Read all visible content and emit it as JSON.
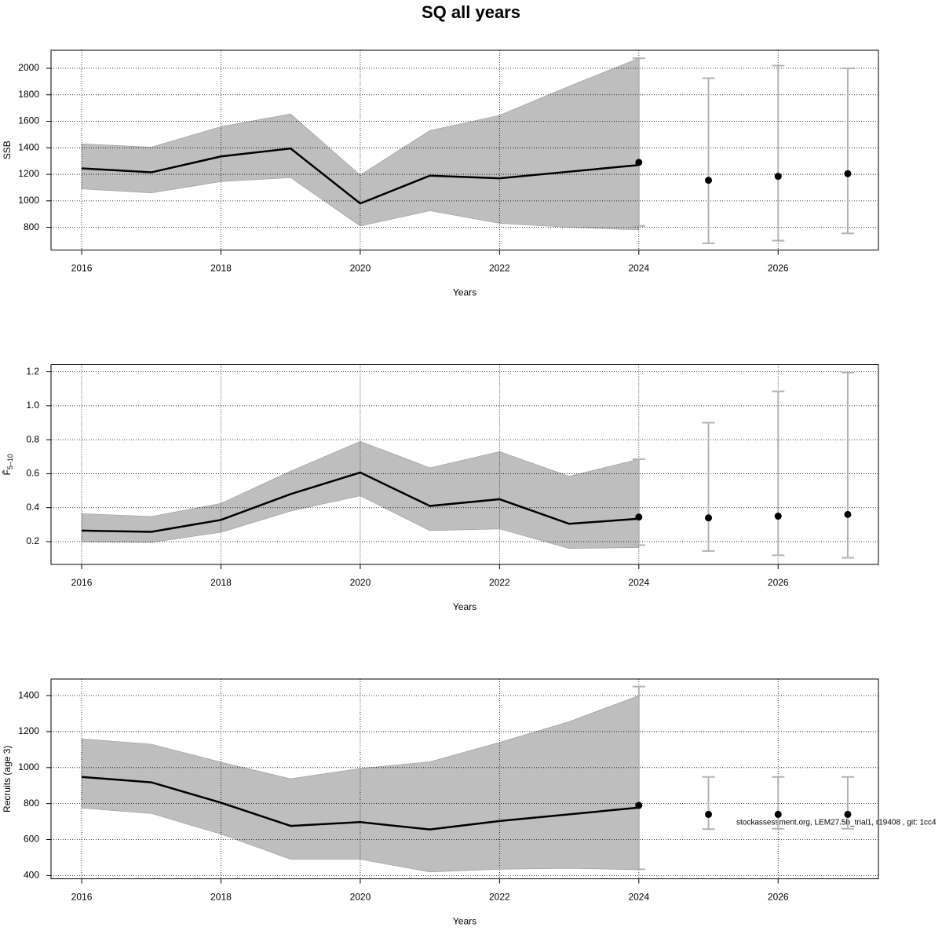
{
  "title": "SQ all years",
  "footnote": "stockassessment.org, LEM27.5b_trial1, r19408 , git: 1cc4",
  "chart_data": [
    {
      "type": "line",
      "ylabel": "SSB",
      "xlabel": "Years",
      "x": [
        2016,
        2017,
        2018,
        2019,
        2020,
        2021,
        2022,
        2023,
        2024
      ],
      "values": [
        1245,
        1215,
        1335,
        1395,
        980,
        1190,
        1170,
        1220,
        1270
      ],
      "upper": [
        1430,
        1405,
        1560,
        1655,
        1195,
        1530,
        1645,
        1865,
        2075
      ],
      "lower": [
        1090,
        1060,
        1145,
        1175,
        810,
        925,
        830,
        800,
        780
      ],
      "points": {
        "x": [
          2024,
          2025,
          2026,
          2027
        ],
        "values": [
          1290,
          1155,
          1185,
          1205
        ],
        "lower": [
          810,
          680,
          700,
          755
        ],
        "upper": [
          2075,
          1925,
          2020,
          2000
        ]
      },
      "xlim": [
        2015.56,
        2027.44
      ],
      "xticks": [
        2016,
        2018,
        2020,
        2022,
        2024,
        2026
      ],
      "ylim": [
        629,
        2136
      ],
      "yticks": [
        800,
        1000,
        1200,
        1400,
        1600,
        1800,
        2000
      ],
      "grid": true,
      "band_color": "#bebebe",
      "line_color": "#000000",
      "point_color": "#000000",
      "errorbar_color": "#b3b3b3"
    },
    {
      "type": "line",
      "ylabel": "F̄",
      "ylabel_subscript": "5–10",
      "xlabel": "Years",
      "x": [
        2016,
        2017,
        2018,
        2019,
        2020,
        2021,
        2022,
        2023,
        2024
      ],
      "values": [
        0.265,
        0.258,
        0.328,
        0.48,
        0.607,
        0.41,
        0.45,
        0.305,
        0.335
      ],
      "upper": [
        0.365,
        0.348,
        0.425,
        0.615,
        0.79,
        0.635,
        0.73,
        0.585,
        0.685
      ],
      "lower": [
        0.198,
        0.195,
        0.255,
        0.38,
        0.47,
        0.265,
        0.275,
        0.16,
        0.165
      ],
      "points": {
        "x": [
          2024,
          2025,
          2026,
          2027
        ],
        "values": [
          0.345,
          0.34,
          0.35,
          0.36
        ],
        "lower": [
          0.18,
          0.145,
          0.12,
          0.105
        ],
        "upper": [
          0.685,
          0.9,
          1.085,
          1.195
        ]
      },
      "xlim": [
        2015.56,
        2027.44
      ],
      "xticks": [
        2016,
        2018,
        2020,
        2022,
        2024,
        2026
      ],
      "ylim": [
        0.066,
        1.242
      ],
      "yticks": [
        0.2,
        0.4,
        0.6,
        0.8,
        {
          "value": 1,
          "label": "1.0"
        },
        1.2
      ],
      "grid": true,
      "band_color": "#bebebe",
      "line_color": "#000000",
      "point_color": "#000000",
      "errorbar_color": "#b3b3b3"
    },
    {
      "type": "line",
      "ylabel": "Recruits (age 3)",
      "xlabel": "Years",
      "x": [
        2016,
        2017,
        2018,
        2019,
        2020,
        2021,
        2022,
        2023,
        2024
      ],
      "values": [
        948,
        918,
        805,
        676,
        697,
        656,
        703,
        740,
        778
      ],
      "upper": [
        1160,
        1130,
        1030,
        938,
        995,
        1032,
        1140,
        1255,
        1400
      ],
      "lower": [
        775,
        745,
        630,
        490,
        490,
        420,
        435,
        440,
        432
      ],
      "points": {
        "x": [
          2024,
          2025,
          2026,
          2027
        ],
        "values": [
          790,
          740,
          740,
          740
        ],
        "lower": [
          435,
          658,
          660,
          660
        ],
        "upper": [
          1450,
          948,
          948,
          948
        ]
      },
      "xlim": [
        2015.56,
        2027.44
      ],
      "xticks": [
        2016,
        2018,
        2020,
        2022,
        2024,
        2026
      ],
      "ylim": [
        382,
        1492
      ],
      "yticks": [
        400,
        600,
        800,
        1000,
        1200,
        1400
      ],
      "grid": true,
      "band_color": "#bebebe",
      "line_color": "#000000",
      "point_color": "#000000",
      "errorbar_color": "#b3b3b3"
    }
  ]
}
